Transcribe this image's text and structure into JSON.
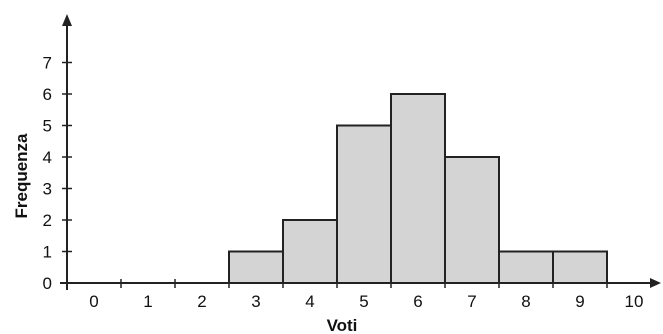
{
  "chart_data": {
    "type": "bar",
    "title": "",
    "xlabel": "Voti",
    "ylabel": "Frequenza",
    "categories": [
      "3",
      "4",
      "5",
      "6",
      "7",
      "8",
      "9"
    ],
    "values": [
      1,
      2,
      5,
      6,
      4,
      1,
      1
    ],
    "x_tick_labels": [
      "0",
      "1",
      "2",
      "3",
      "4",
      "5",
      "6",
      "7",
      "8",
      "9",
      "10"
    ],
    "y_tick_labels": [
      "0",
      "1",
      "2",
      "3",
      "4",
      "5",
      "6",
      "7"
    ],
    "ylim": [
      0,
      7
    ],
    "grid": false,
    "bar_color": "#d4d4d4",
    "edge_color": "#222222"
  }
}
